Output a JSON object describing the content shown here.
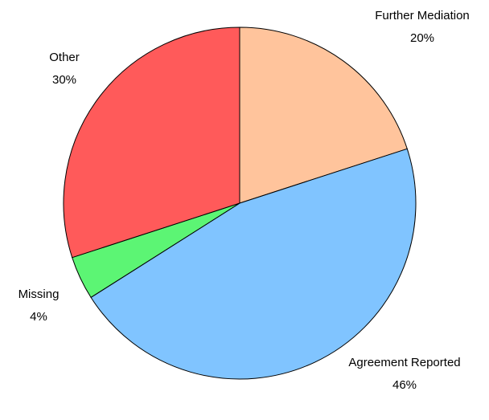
{
  "chart_data": {
    "type": "pie",
    "categories": [
      "Further Mediation",
      "Agreement Reported",
      "Missing",
      "Other"
    ],
    "values": [
      20,
      46,
      4,
      30
    ],
    "value_labels": [
      "20%",
      "46%",
      "4%",
      "30%"
    ],
    "colors": [
      "#ffc49c",
      "#80c4ff",
      "#5cf574",
      "#ff5a5a"
    ],
    "start_angle": 0,
    "direction": "clockwise"
  }
}
